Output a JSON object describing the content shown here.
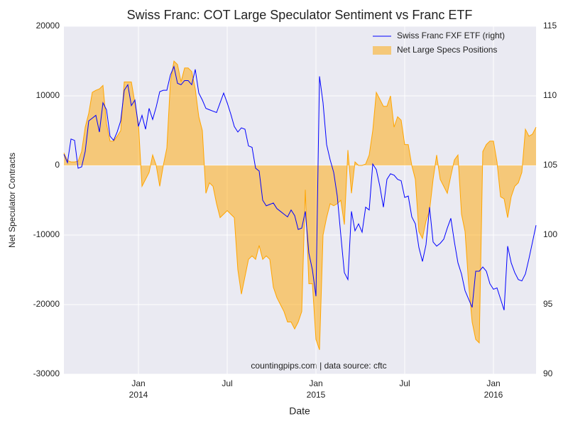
{
  "chart_data": {
    "type": "line",
    "title": "Swiss Franc: COT Large Speculator Sentiment vs Franc ETF",
    "x_label": "Date",
    "y_label": "Net Speculator Contracts",
    "annotation": "countingpips.com | data source: cftc",
    "legend": "upper right",
    "grid": true,
    "xlim": [
      2013.58,
      2016.24
    ],
    "xticks": [
      {
        "value": 2014,
        "label": "Jan\n2014"
      },
      {
        "value": 2014.5,
        "label": "Jul"
      },
      {
        "value": 2015,
        "label": "Jan\n2015"
      },
      {
        "value": 2015.5,
        "label": "Jul"
      },
      {
        "value": 2016,
        "label": "Jan\n2016"
      }
    ],
    "ylim": [
      -30000,
      20000
    ],
    "yticks": [
      -30000,
      -20000,
      -10000,
      0,
      10000,
      20000
    ],
    "y2lim": [
      90,
      115
    ],
    "y2ticks": [
      90,
      95,
      100,
      105,
      110,
      115
    ],
    "x": [
      2013.58,
      2013.6,
      2013.62,
      2013.64,
      2013.66,
      2013.68,
      2013.7,
      2013.72,
      2013.74,
      2013.76,
      2013.78,
      2013.8,
      2013.82,
      2013.84,
      2013.86,
      2013.88,
      2013.9,
      2013.92,
      2013.94,
      2013.96,
      2013.98,
      2014,
      2014.02,
      2014.04,
      2014.06,
      2014.08,
      2014.1,
      2014.12,
      2014.14,
      2014.16,
      2014.18,
      2014.2,
      2014.22,
      2014.24,
      2014.26,
      2014.28,
      2014.3,
      2014.32,
      2014.34,
      2014.36,
      2014.38,
      2014.4,
      2014.42,
      2014.44,
      2014.46,
      2014.48,
      2014.5,
      2014.52,
      2014.54,
      2014.56,
      2014.58,
      2014.6,
      2014.62,
      2014.64,
      2014.66,
      2014.68,
      2014.7,
      2014.72,
      2014.74,
      2014.76,
      2014.78,
      2014.8,
      2014.82,
      2014.84,
      2014.86,
      2014.88,
      2014.9,
      2014.92,
      2014.94,
      2014.96,
      2014.98,
      2015,
      2015.02,
      2015.04,
      2015.06,
      2015.08,
      2015.1,
      2015.12,
      2015.14,
      2015.16,
      2015.18,
      2015.2,
      2015.22,
      2015.24,
      2015.26,
      2015.28,
      2015.3,
      2015.32,
      2015.34,
      2015.36,
      2015.38,
      2015.4,
      2015.42,
      2015.44,
      2015.46,
      2015.48,
      2015.5,
      2015.52,
      2015.54,
      2015.56,
      2015.58,
      2015.6,
      2015.62,
      2015.64,
      2015.66,
      2015.68,
      2015.7,
      2015.72,
      2015.74,
      2015.76,
      2015.78,
      2015.8,
      2015.82,
      2015.84,
      2015.86,
      2015.88,
      2015.9,
      2015.92,
      2015.94,
      2015.96,
      2015.98,
      2016,
      2016.02,
      2016.04,
      2016.06,
      2016.08,
      2016.1,
      2016.12,
      2016.14,
      2016.16,
      2016.18,
      2016.2,
      2016.22,
      2016.24
    ],
    "series": [
      {
        "name": "Swiss Franc FXF ETF (right)",
        "type": "line",
        "axis": "y2",
        "color": "#0000ff",
        "values": [
          105.8,
          105.2,
          106.9,
          106.8,
          104.8,
          104.9,
          106,
          108.2,
          108.4,
          108.6,
          107.4,
          109.5,
          109,
          107.1,
          106.8,
          107.4,
          108.2,
          110.4,
          110.8,
          109.3,
          109.7,
          107.8,
          108.6,
          107.6,
          109.1,
          108.3,
          109.2,
          110.3,
          110.4,
          110.4,
          111.5,
          112.1,
          110.9,
          110.8,
          111.1,
          111.1,
          110.8,
          111.9,
          110.2,
          109.7,
          109.1,
          109,
          108.9,
          108.8,
          109.5,
          110.2,
          109.5,
          108.7,
          107.8,
          107.4,
          107.7,
          107.6,
          106.4,
          106.3,
          104.8,
          104.6,
          102.5,
          102.1,
          102.2,
          102.3,
          101.9,
          101.7,
          101.5,
          101.3,
          101.8,
          101.4,
          100.4,
          100.5,
          101.7,
          98.7,
          97.5,
          95.6,
          111.4,
          109.5,
          106.5,
          105.4,
          104.5,
          102.8,
          100,
          97.3,
          96.8,
          101.7,
          100.3,
          100.8,
          100.2,
          102,
          101.8,
          105.1,
          104.7,
          103.5,
          102,
          104,
          104.4,
          104.3,
          104,
          103.9,
          102.7,
          102.8,
          101.3,
          100.8,
          99.1,
          98.1,
          99.3,
          102,
          99.5,
          99.2,
          99.4,
          99.7,
          100.5,
          101.2,
          99.5,
          98,
          97.2,
          96,
          95.4,
          94.8,
          97.4,
          97.4,
          97.7,
          97.4,
          96.5,
          96.1,
          96.2,
          95.4,
          94.6,
          99.2,
          98,
          97.3,
          96.8,
          96.7,
          97.2,
          98.3,
          99.5,
          100.7
        ]
      },
      {
        "name": "Net Large Specs Positions",
        "type": "area",
        "axis": "y",
        "color": "#ffa500",
        "values": [
          1800,
          700,
          500,
          500,
          600,
          2000,
          5500,
          7500,
          10500,
          10800,
          11000,
          11500,
          6000,
          3500,
          3500,
          4200,
          5000,
          12000,
          12000,
          12000,
          9000,
          6000,
          -3000,
          -2000,
          -1000,
          1500,
          0,
          -3000,
          0,
          2500,
          12000,
          15000,
          14500,
          12000,
          14000,
          14000,
          13500,
          11000,
          7000,
          5000,
          -4000,
          -2500,
          -3000,
          -5500,
          -7500,
          -7000,
          -6500,
          -7000,
          -7500,
          -15000,
          -18500,
          -16000,
          -13500,
          -13000,
          -13500,
          -11500,
          -13500,
          -13000,
          -13500,
          -17500,
          -19000,
          -20000,
          -21000,
          -22500,
          -22500,
          -23500,
          -22500,
          -21000,
          -3500,
          -17000,
          -17000,
          -25000,
          -26500,
          -10000,
          -7500,
          -5500,
          -5800,
          -5500,
          -5000,
          -8500,
          2200,
          -4000,
          500,
          0,
          0,
          200,
          1500,
          5000,
          10500,
          9500,
          8500,
          8500,
          10000,
          5500,
          7000,
          6500,
          3000,
          3000,
          0,
          -2000,
          -9500,
          -10500,
          -8000,
          -6500,
          -2000,
          1500,
          -2000,
          -3000,
          -4000,
          -1500,
          800,
          1500,
          -7000,
          -9500,
          -17000,
          -22500,
          -25000,
          -25500,
          2000,
          3000,
          3500,
          3500,
          500,
          -4500,
          -4800,
          -7500,
          -4500,
          -3000,
          -2500,
          -1000,
          5200,
          4200,
          4500,
          5500
        ]
      }
    ]
  }
}
